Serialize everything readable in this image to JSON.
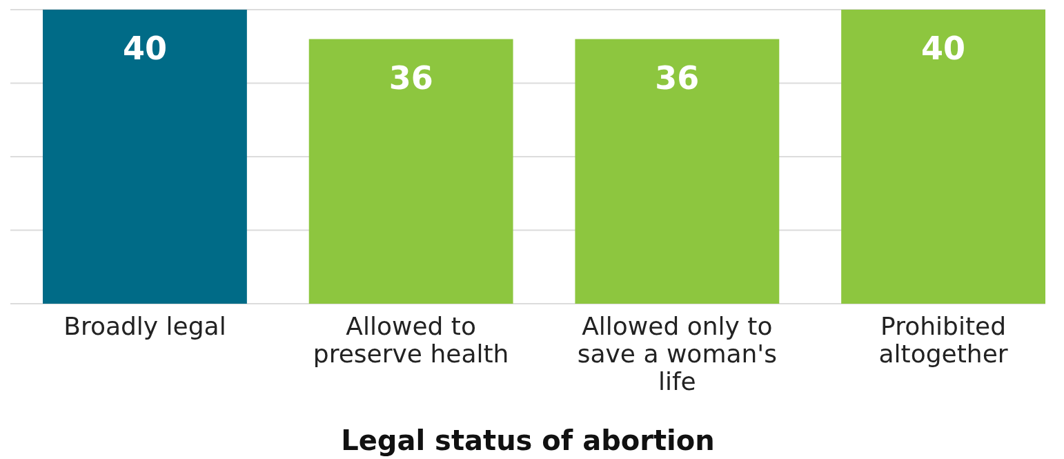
{
  "chart_data": {
    "type": "bar",
    "xlabel": "Legal status of abortion",
    "categories": [
      "Broadly legal",
      "Allowed to preserve health",
      "Allowed only to save a woman's life",
      "Prohibited altogether"
    ],
    "values": [
      40,
      36,
      36,
      40
    ],
    "colors": [
      "#006b87",
      "#8dc63f",
      "#8dc63f",
      "#8dc63f"
    ],
    "ylim": [
      0,
      40
    ],
    "yticks": [
      0,
      10,
      20,
      30,
      40
    ],
    "grid": "y",
    "tick_labels": "x",
    "data_labels": true
  }
}
